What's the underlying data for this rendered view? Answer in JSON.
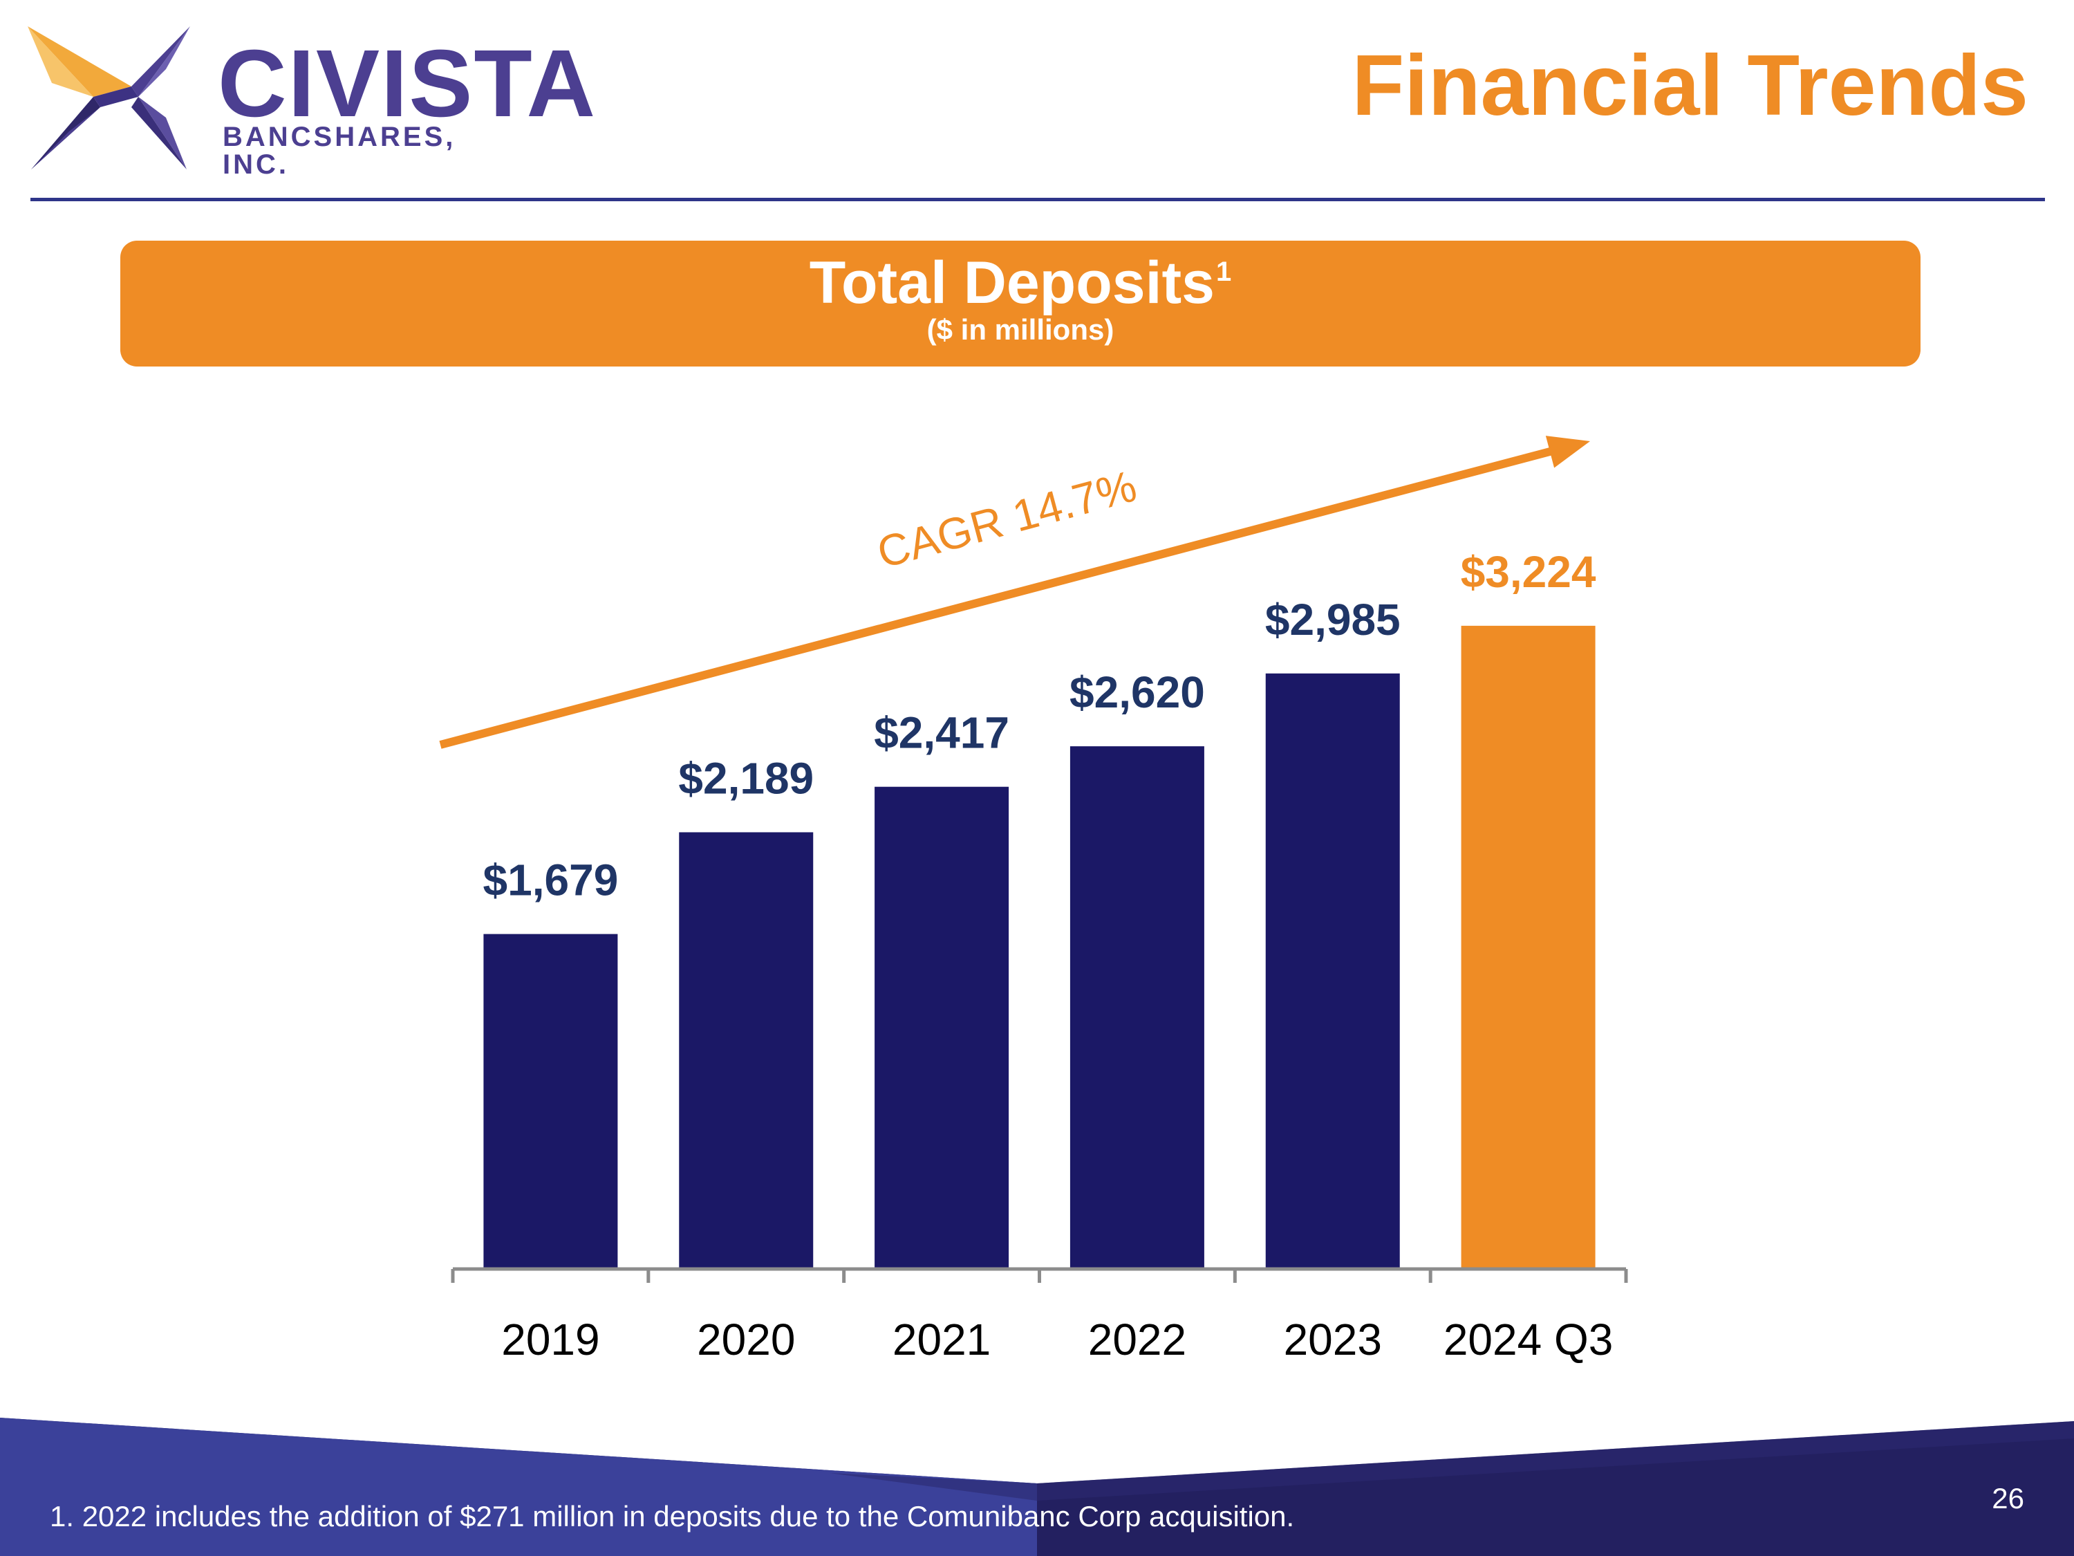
{
  "logo": {
    "name": "CIVISTA",
    "subname": "BANCSHARES, INC."
  },
  "slide": {
    "title": "Financial Trends",
    "page_number": "26",
    "footnote": "1. 2022 includes the addition of $271 million in deposits due to the Comunibanc Corp acquisition."
  },
  "banner": {
    "title": "Total Deposits",
    "superscript": "1",
    "subtitle": "($ in millions)"
  },
  "colors": {
    "navy_bar": "#1b1866",
    "orange": "#ef8c25",
    "label_blue": "#1f3566",
    "axis": "#8c8c8c",
    "logo_purple": "#4c3f91"
  },
  "chart_data": {
    "type": "bar",
    "title": "Total Deposits",
    "subtitle": "($ in millions)",
    "xlabel": "",
    "ylabel": "",
    "ylim": [
      0,
      3400
    ],
    "categories": [
      "2019",
      "2020",
      "2021",
      "2022",
      "2023",
      "2024 Q3"
    ],
    "values": [
      1679,
      2189,
      2417,
      2620,
      2985,
      3224
    ],
    "data_labels": [
      "$1,679",
      "$2,189",
      "$2,417",
      "$2,620",
      "$2,985",
      "$3,224"
    ],
    "highlight_category": "2024 Q3",
    "annotation": "CAGR 14.7%",
    "grid": false,
    "legend": "none"
  }
}
